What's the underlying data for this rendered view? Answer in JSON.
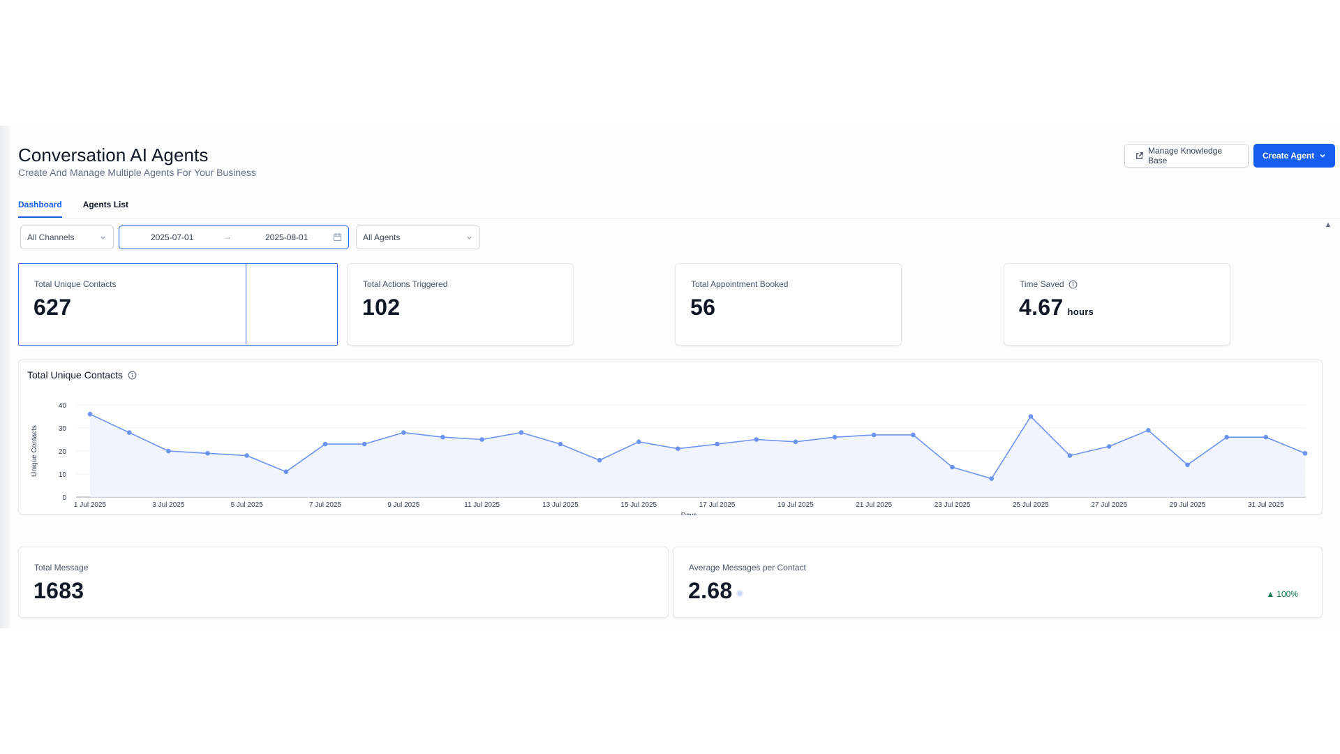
{
  "header": {
    "title": "Conversation AI Agents",
    "subtitle": "Create And Manage Multiple Agents For Your Business",
    "manage_kb_label": "Manage Knowledge Base",
    "create_agent_label": "Create Agent"
  },
  "tabs": [
    {
      "label": "Dashboard",
      "active": true
    },
    {
      "label": "Agents List",
      "active": false
    }
  ],
  "filters": {
    "channel": "All Channels",
    "date_start": "2025-07-01",
    "date_end": "2025-08-01",
    "agent": "All Agents"
  },
  "kpis": {
    "unique_contacts": {
      "label": "Total Unique Contacts",
      "value": "627"
    },
    "actions_triggered": {
      "label": "Total Actions Triggered",
      "value": "102"
    },
    "appointments": {
      "label": "Total Appointment Booked",
      "value": "56"
    },
    "time_saved": {
      "label": "Time Saved",
      "value": "4.67",
      "unit": "hours"
    }
  },
  "messages": {
    "total": {
      "label": "Total Message",
      "value": "1683"
    },
    "average": {
      "label": "Average Messages per Contact",
      "value": "2.68",
      "trend": "100%",
      "trend_direction": "up"
    }
  },
  "colors": {
    "accent": "#155eef",
    "line": "#6b93f0",
    "area": "#eef2fd",
    "trend_up": "#067647"
  },
  "chart_data": {
    "type": "line",
    "title": "Total Unique Contacts",
    "xlabel": "Days",
    "ylabel": "Unique Contacts",
    "ylim": [
      0,
      40
    ],
    "yticks": [
      0,
      10,
      20,
      30,
      40
    ],
    "grid": true,
    "x": [
      "1 Jul 2025",
      "2 Jul 2025",
      "3 Jul 2025",
      "4 Jul 2025",
      "5 Jul 2025",
      "6 Jul 2025",
      "7 Jul 2025",
      "8 Jul 2025",
      "9 Jul 2025",
      "10 Jul 2025",
      "11 Jul 2025",
      "12 Jul 2025",
      "13 Jul 2025",
      "14 Jul 2025",
      "15 Jul 2025",
      "16 Jul 2025",
      "17 Jul 2025",
      "18 Jul 2025",
      "19 Jul 2025",
      "20 Jul 2025",
      "21 Jul 2025",
      "22 Jul 2025",
      "23 Jul 2025",
      "24 Jul 2025",
      "25 Jul 2025",
      "26 Jul 2025",
      "27 Jul 2025",
      "28 Jul 2025",
      "29 Jul 2025",
      "30 Jul 2025",
      "31 Jul 2025",
      "1 Aug 2025"
    ],
    "xtick_labels": [
      "1 Jul 2025",
      "3 Jul 2025",
      "5 Jul 2025",
      "7 Jul 2025",
      "9 Jul 2025",
      "11 Jul 2025",
      "13 Jul 2025",
      "15 Jul 2025",
      "17 Jul 2025",
      "19 Jul 2025",
      "21 Jul 2025",
      "23 Jul 2025",
      "25 Jul 2025",
      "27 Jul 2025",
      "29 Jul 2025",
      "31 Jul 2025"
    ],
    "values": [
      36,
      28,
      20,
      19,
      18,
      11,
      23,
      23,
      28,
      26,
      25,
      28,
      23,
      16,
      24,
      21,
      23,
      25,
      24,
      26,
      27,
      27,
      13,
      8,
      35,
      18,
      22,
      29,
      14,
      26,
      26,
      19
    ]
  }
}
